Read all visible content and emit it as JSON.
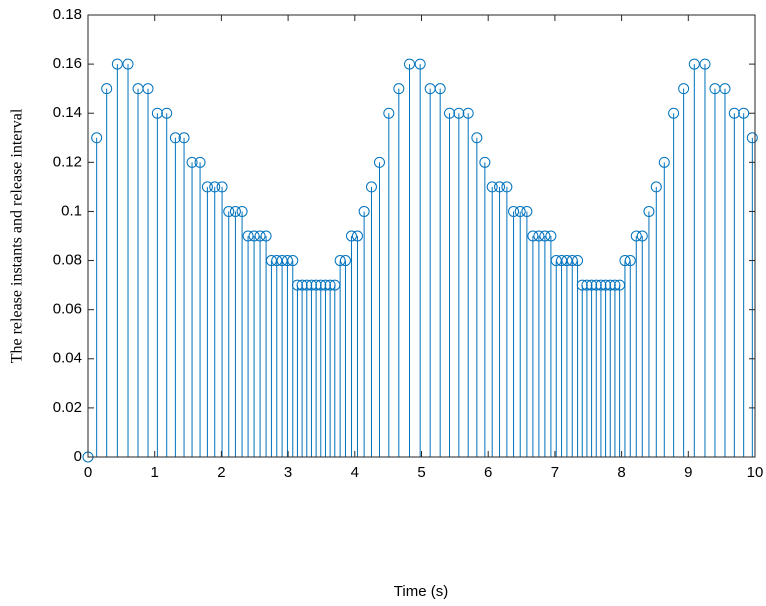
{
  "chart_data": {
    "type": "stem",
    "xlabel": "Time (s)",
    "ylabel": "The release instants and release interval",
    "x": [
      0,
      0.13,
      0.28,
      0.44,
      0.6,
      0.75,
      0.9,
      1.04,
      1.18,
      1.31,
      1.44,
      1.56,
      1.68,
      1.79,
      1.9,
      2.01,
      2.11,
      2.21,
      2.31,
      2.4,
      2.49,
      2.58,
      2.67,
      2.75,
      2.83,
      2.91,
      2.99,
      3.07,
      3.14,
      3.21,
      3.28,
      3.35,
      3.42,
      3.49,
      3.56,
      3.63,
      3.7,
      3.78,
      3.86,
      3.95,
      4.04,
      4.14,
      4.25,
      4.37,
      4.51,
      4.66,
      4.82,
      4.98,
      5.13,
      5.28,
      5.42,
      5.56,
      5.7,
      5.83,
      5.95,
      6.06,
      6.17,
      6.28,
      6.38,
      6.48,
      6.58,
      6.67,
      6.76,
      6.85,
      6.94,
      7.02,
      7.1,
      7.18,
      7.26,
      7.34,
      7.41,
      7.48,
      7.55,
      7.62,
      7.69,
      7.76,
      7.83,
      7.9,
      7.97,
      8.05,
      8.13,
      8.22,
      8.31,
      8.41,
      8.52,
      8.64,
      8.78,
      8.93,
      9.09,
      9.25,
      9.4,
      9.55,
      9.69,
      9.83,
      9.96
    ],
    "values": [
      0,
      0.13,
      0.15,
      0.16,
      0.16,
      0.15,
      0.15,
      0.14,
      0.14,
      0.13,
      0.13,
      0.12,
      0.12,
      0.11,
      0.11,
      0.11,
      0.1,
      0.1,
      0.1,
      0.09,
      0.09,
      0.09,
      0.09,
      0.08,
      0.08,
      0.08,
      0.08,
      0.08,
      0.07,
      0.07,
      0.07,
      0.07,
      0.07,
      0.07,
      0.07,
      0.07,
      0.07,
      0.08,
      0.08,
      0.09,
      0.09,
      0.1,
      0.11,
      0.12,
      0.14,
      0.15,
      0.16,
      0.16,
      0.15,
      0.15,
      0.14,
      0.14,
      0.14,
      0.13,
      0.12,
      0.11,
      0.11,
      0.11,
      0.1,
      0.1,
      0.1,
      0.09,
      0.09,
      0.09,
      0.09,
      0.08,
      0.08,
      0.08,
      0.08,
      0.08,
      0.07,
      0.07,
      0.07,
      0.07,
      0.07,
      0.07,
      0.07,
      0.07,
      0.07,
      0.08,
      0.08,
      0.09,
      0.09,
      0.1,
      0.11,
      0.12,
      0.14,
      0.15,
      0.16,
      0.16,
      0.15,
      0.15,
      0.14,
      0.14,
      0.13
    ],
    "color": "#0072bd",
    "xlim": [
      0,
      10
    ],
    "xticks": [
      0,
      1,
      2,
      3,
      4,
      5,
      6,
      7,
      8,
      9,
      10
    ],
    "ylim": [
      0,
      0.18
    ],
    "yticks": [
      0,
      0.02,
      0.04,
      0.06,
      0.08,
      0.1,
      0.12,
      0.14,
      0.16,
      0.18
    ]
  }
}
